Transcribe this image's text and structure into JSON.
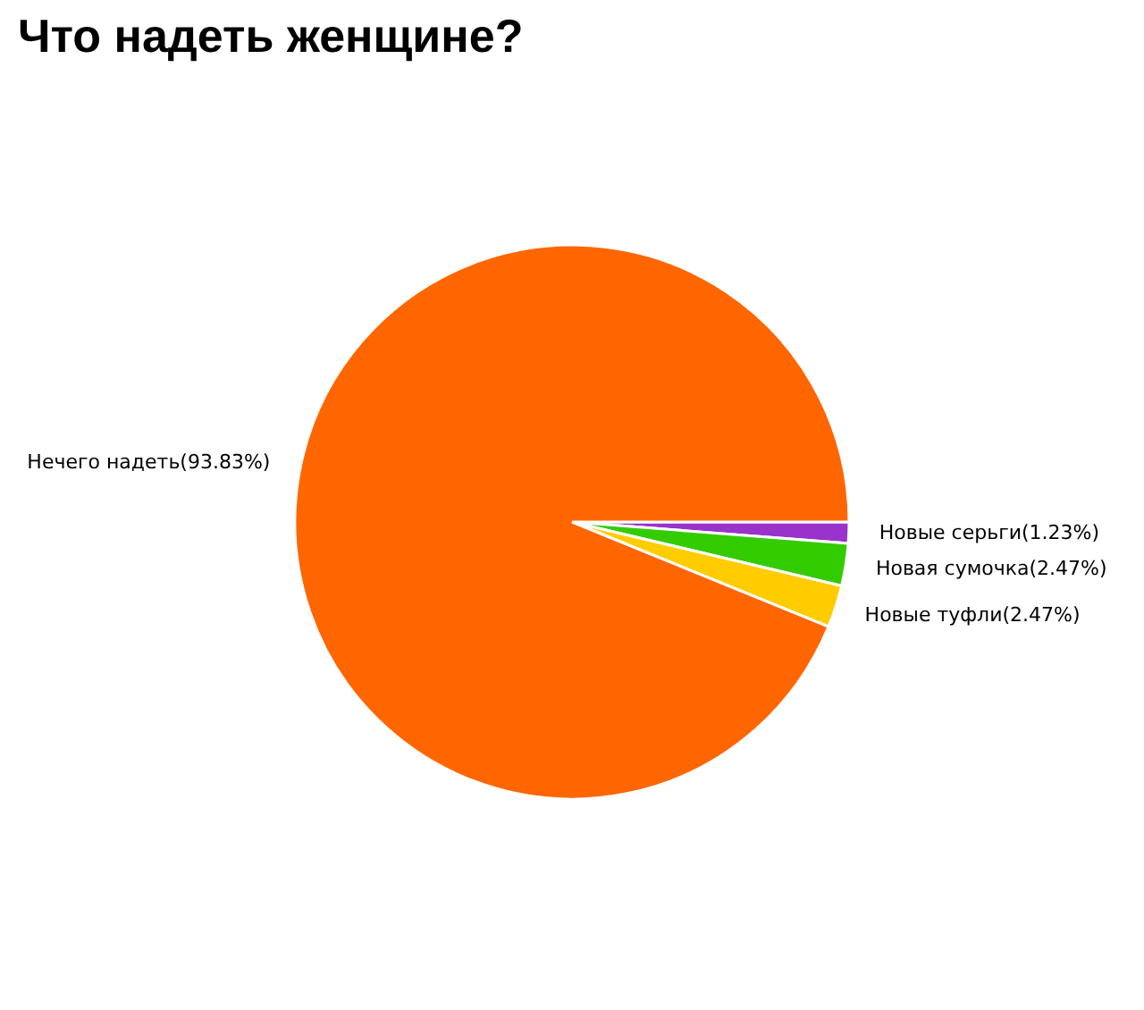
{
  "chart_data": {
    "type": "pie",
    "title": "Что надеть женщине?",
    "categories": [
      "Новые серьги",
      "Новая сумочка",
      "Новые туфли",
      "Нечего надеть"
    ],
    "values": [
      1.23,
      2.47,
      2.47,
      93.83
    ],
    "colors": [
      "#9933cc",
      "#33cc00",
      "#ffcc00",
      "#ff6600"
    ],
    "value_labels": [
      "(1.23%)",
      "(2.47%)",
      "(2.47%)",
      "(93.83%)"
    ],
    "legend": false
  }
}
